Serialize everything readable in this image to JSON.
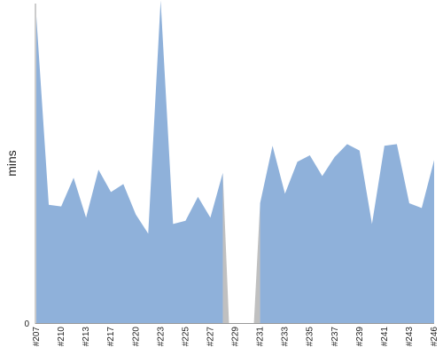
{
  "chart_data": {
    "type": "area",
    "ylabel": "mins",
    "y_tick_labels": [
      "0"
    ],
    "ylim": [
      0,
      100
    ],
    "x_tick_labels": [
      "#207",
      "#210",
      "#213",
      "#217",
      "#220",
      "#223",
      "#225",
      "#227",
      "#229",
      "#231",
      "#233",
      "#235",
      "#237",
      "#239",
      "#241",
      "#243",
      "#246"
    ],
    "x_tick_index": [
      0,
      2,
      4,
      6,
      8,
      10,
      12,
      14,
      16,
      18,
      20,
      22,
      24,
      26,
      28,
      30,
      32
    ],
    "colors": {
      "series": "#8fb1da",
      "gap": "#c0c0c0",
      "axis": "#999999"
    },
    "series": [
      {
        "values": [
          96,
          37,
          36.5,
          45.5,
          33,
          48,
          41,
          43.5,
          34,
          28,
          101,
          31,
          32,
          39.5,
          33,
          47,
          null,
          null,
          37.5,
          55.5,
          40.5,
          50.5,
          52.5,
          46,
          52,
          56,
          54,
          31,
          55.5,
          56,
          37.5,
          36,
          51
        ]
      }
    ],
    "gap": {
      "after_index": 15,
      "before_index": 18
    }
  }
}
